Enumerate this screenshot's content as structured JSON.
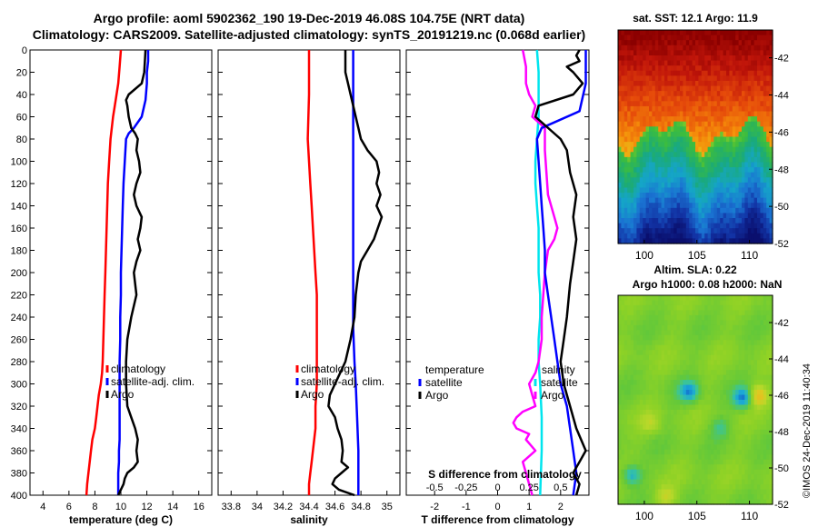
{
  "titles": {
    "line1": "Argo profile: aoml 5902362_190 19-Dec-2019 46.08S 104.75E (NRT data)",
    "line2": "Climatology: CARS2009. Satellite-adjusted climatology: synTS_20191219.nc (0.068d earlier)"
  },
  "colors": {
    "climatology": "#ff0000",
    "satellite": "#0000ff",
    "argo": "#000000",
    "cyan": "#00e5ee",
    "magenta": "#ff00ff"
  },
  "depth_axis": {
    "min": 0,
    "max": 400,
    "ticks": [
      "0",
      "20",
      "40",
      "60",
      "80",
      "100",
      "120",
      "140",
      "160",
      "180",
      "200",
      "220",
      "240",
      "260",
      "280",
      "300",
      "320",
      "340",
      "360",
      "380",
      "400"
    ]
  },
  "chart_data": [
    {
      "type": "line",
      "id": "temperature",
      "xlabel": "temperature (deg C)",
      "xlim": [
        3,
        17
      ],
      "xticks": [
        "4",
        "6",
        "8",
        "10",
        "12",
        "14",
        "16"
      ],
      "legend": [
        "climatology",
        "satellite-adj. clim.",
        "Argo"
      ],
      "series": [
        {
          "name": "climatology",
          "color": "#ff0000",
          "x": [
            10.0,
            9.9,
            9.8,
            9.6,
            9.4,
            9.2,
            9.1,
            9.0,
            8.95,
            8.9,
            8.85,
            8.8,
            8.75,
            8.7,
            8.65,
            8.6,
            8.55,
            8.45,
            8.3,
            8.2,
            8.1,
            8.0,
            7.8,
            7.7,
            7.6,
            7.5,
            7.4,
            7.35
          ],
          "y": [
            0,
            15,
            30,
            45,
            60,
            80,
            100,
            120,
            140,
            160,
            180,
            200,
            220,
            240,
            260,
            280,
            290,
            300,
            310,
            320,
            330,
            340,
            350,
            360,
            370,
            380,
            390,
            400
          ]
        },
        {
          "name": "satellite-adj. clim.",
          "color": "#0000ff",
          "x": [
            12.1,
            12.1,
            12.0,
            12.0,
            11.9,
            11.6,
            11.0,
            10.6,
            10.4,
            10.3,
            10.2,
            10.15,
            10.1,
            10.05,
            10.0,
            10.0,
            9.95,
            9.95,
            9.9,
            9.9,
            9.9,
            9.9,
            9.9,
            9.85,
            9.85,
            9.8,
            9.8,
            9.8,
            9.8
          ],
          "y": [
            0,
            10,
            20,
            30,
            45,
            60,
            70,
            75,
            80,
            100,
            120,
            140,
            160,
            180,
            200,
            220,
            240,
            260,
            280,
            300,
            320,
            340,
            350,
            360,
            370,
            380,
            390,
            395,
            400
          ]
        },
        {
          "name": "Argo",
          "color": "#000000",
          "x": [
            11.9,
            11.85,
            11.8,
            11.6,
            10.6,
            10.4,
            10.5,
            10.6,
            10.8,
            11.1,
            11.3,
            11.2,
            11.4,
            11.5,
            11.2,
            11.0,
            11.2,
            11.6,
            11.5,
            11.3,
            11.5,
            11.2,
            11.0,
            11.1,
            11.2,
            10.8,
            10.5,
            10.4,
            10.4,
            10.5,
            10.8,
            11.1,
            11.3,
            11.2,
            11.3,
            11.0,
            10.5,
            10.3,
            10.2,
            10.0,
            9.8
          ],
          "y": [
            0,
            10,
            20,
            30,
            40,
            45,
            50,
            60,
            70,
            75,
            80,
            90,
            100,
            110,
            120,
            130,
            140,
            150,
            160,
            170,
            180,
            190,
            200,
            210,
            220,
            240,
            260,
            280,
            300,
            320,
            330,
            340,
            350,
            360,
            370,
            375,
            380,
            385,
            390,
            395,
            400
          ]
        }
      ]
    },
    {
      "type": "line",
      "id": "salinity",
      "xlabel": "salinity",
      "xlim": [
        33.7,
        35.1
      ],
      "xticks": [
        "33.8",
        "34",
        "34.2",
        "34.4",
        "34.6",
        "34.8",
        "35"
      ],
      "legend": [
        "climatology",
        "satellite-adj. clim.",
        "Argo"
      ],
      "series": [
        {
          "name": "climatology",
          "color": "#ff0000",
          "x": [
            34.4,
            34.4,
            34.39,
            34.4,
            34.41,
            34.42,
            34.43,
            34.44,
            34.45,
            34.46,
            34.46,
            34.46,
            34.46,
            34.46,
            34.45,
            34.45,
            34.44,
            34.43,
            34.42,
            34.41,
            34.4,
            34.4
          ],
          "y": [
            0,
            40,
            80,
            100,
            120,
            140,
            160,
            180,
            200,
            220,
            240,
            260,
            280,
            300,
            320,
            340,
            350,
            360,
            370,
            380,
            390,
            400
          ]
        },
        {
          "name": "satellite-adj. clim.",
          "color": "#0000ff",
          "x": [
            34.74,
            34.74,
            34.74,
            34.74,
            34.74,
            34.74,
            34.75,
            34.76,
            34.77,
            34.78,
            34.78,
            34.78
          ],
          "y": [
            0,
            50,
            100,
            150,
            200,
            250,
            280,
            300,
            330,
            360,
            380,
            400
          ]
        },
        {
          "name": "Argo",
          "color": "#000000",
          "x": [
            34.68,
            34.68,
            34.68,
            34.7,
            34.72,
            34.74,
            34.76,
            34.78,
            34.8,
            34.85,
            34.92,
            34.94,
            34.92,
            34.95,
            34.92,
            34.96,
            34.93,
            34.9,
            34.85,
            34.8,
            34.78,
            34.76,
            34.75,
            34.72,
            34.68,
            34.64,
            34.6,
            34.56,
            34.55,
            34.6,
            34.62,
            34.65,
            34.66,
            34.65,
            34.7,
            34.65,
            34.6,
            34.58,
            34.63,
            34.75
          ],
          "y": [
            0,
            10,
            20,
            30,
            40,
            50,
            60,
            70,
            80,
            90,
            100,
            110,
            120,
            130,
            140,
            150,
            160,
            170,
            180,
            190,
            200,
            220,
            240,
            260,
            280,
            290,
            300,
            310,
            320,
            330,
            340,
            350,
            360,
            370,
            375,
            380,
            385,
            390,
            395,
            400
          ]
        }
      ]
    },
    {
      "type": "line",
      "id": "difference",
      "xlabel": "T difference from climatology",
      "xlabel_top": "S difference from climatology",
      "xlim": [
        -2.9,
        2.9
      ],
      "xticks": [
        "-2",
        "-1",
        "0",
        "1",
        "2"
      ],
      "xticks_top": [
        "-0.5",
        "-0.25",
        "0",
        "0.25",
        "0.5"
      ],
      "legend_left": {
        "title": "temperature",
        "items": [
          "satellite",
          "Argo"
        ]
      },
      "legend_right": {
        "title": "salinity",
        "items": [
          "satellite",
          "Argo"
        ]
      },
      "series": [
        {
          "name": "S satellite",
          "color": "#00e5ee",
          "x": [
            1.25,
            1.3,
            1.3,
            1.3,
            1.25,
            1.2,
            1.2,
            1.25,
            1.3,
            1.3,
            1.3,
            1.35,
            1.35,
            1.3,
            1.3,
            1.35,
            1.4,
            1.4,
            1.35
          ],
          "y": [
            0,
            20,
            40,
            60,
            80,
            100,
            120,
            140,
            160,
            180,
            200,
            220,
            240,
            260,
            280,
            300,
            330,
            360,
            400
          ]
        },
        {
          "name": "S Argo",
          "color": "#ff00ff",
          "x": [
            0.8,
            0.9,
            0.9,
            1.0,
            1.2,
            1.1,
            1.5,
            1.5,
            1.55,
            1.6,
            1.8,
            1.9,
            1.8,
            1.6,
            1.5,
            1.4,
            1.4,
            1.3,
            1.2,
            1.0,
            1.1,
            1.2,
            0.8,
            0.6,
            0.5,
            0.6,
            1.0,
            0.9,
            1.2,
            0.8,
            0.9,
            1.0,
            1.1
          ],
          "y": [
            0,
            15,
            30,
            40,
            50,
            60,
            70,
            90,
            110,
            130,
            150,
            160,
            170,
            180,
            200,
            240,
            260,
            280,
            290,
            300,
            310,
            320,
            325,
            330,
            335,
            340,
            345,
            350,
            360,
            370,
            380,
            390,
            400
          ]
        },
        {
          "name": "T satellite",
          "color": "#0000ff",
          "x": [
            2.8,
            2.8,
            2.8,
            2.8,
            2.6,
            1.4,
            1.25,
            1.3,
            1.35,
            1.4,
            1.45,
            1.5,
            1.5,
            1.6,
            1.7,
            1.8,
            1.9,
            2.0,
            2.2,
            2.3,
            2.4,
            2.5,
            2.4
          ],
          "y": [
            0,
            10,
            20,
            30,
            55,
            70,
            80,
            100,
            120,
            140,
            160,
            180,
            200,
            220,
            240,
            260,
            280,
            300,
            320,
            340,
            360,
            380,
            400
          ]
        },
        {
          "name": "T Argo",
          "color": "#000000",
          "x": [
            2.6,
            2.5,
            2.6,
            2.2,
            2.4,
            2.7,
            2.4,
            1.3,
            1.2,
            2.0,
            2.2,
            2.3,
            2.5,
            2.4,
            2.5,
            2.4,
            2.3,
            2.2,
            2.1,
            2.0,
            2.1,
            2.3,
            2.5,
            2.8,
            2.6,
            2.4,
            2.6,
            2.5
          ],
          "y": [
            0,
            5,
            10,
            15,
            20,
            30,
            40,
            50,
            60,
            80,
            90,
            110,
            130,
            150,
            170,
            190,
            210,
            240,
            260,
            280,
            300,
            320,
            340,
            360,
            370,
            380,
            390,
            400
          ]
        }
      ]
    },
    {
      "type": "heatmap",
      "id": "sst",
      "title": "sat. SST: 12.1 Argo: 11.9",
      "xticks": [
        "100",
        "105",
        "110"
      ],
      "xlim": [
        97.5,
        112.2
      ],
      "yticks": [
        "-42",
        "-44",
        "-46",
        "-48",
        "-50",
        "-52"
      ],
      "ylim": [
        -52,
        -40.5
      ],
      "palette": [
        "#8b0000",
        "#c0150a",
        "#e64b0a",
        "#f58e0a",
        "#e8c71a",
        "#a8d21e",
        "#3dbd3d",
        "#1aaa7a",
        "#15a5c8",
        "#1a73d2",
        "#1233a5",
        "#0a0f6e"
      ]
    },
    {
      "type": "heatmap",
      "id": "sla",
      "title": "Altim. SLA: 0.22",
      "subtitle": "Argo h1000: 0.08 h2000: NaN",
      "xticks": [
        "100",
        "105",
        "110"
      ],
      "xlim": [
        97.5,
        112.2
      ],
      "yticks": [
        "-42",
        "-44",
        "-46",
        "-48",
        "-50",
        "-52"
      ],
      "ylim": [
        -52,
        -40.5
      ],
      "palette": [
        "#1060c8",
        "#1aa7d8",
        "#38c4a0",
        "#62c83a",
        "#8ed226",
        "#b8d82a",
        "#e0c820",
        "#f0a020",
        "#e06018"
      ]
    }
  ],
  "credit": "©IMOS 24-Dec-2019 11:40:34"
}
